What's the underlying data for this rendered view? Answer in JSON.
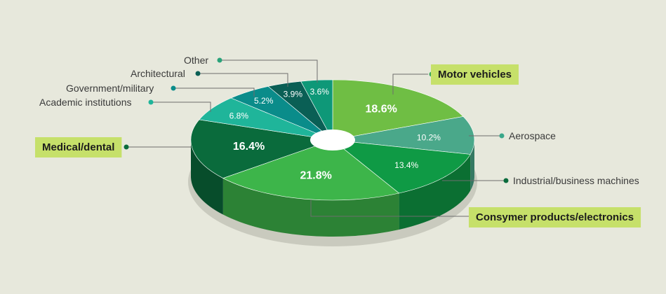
{
  "chart_data": {
    "type": "pie",
    "style": "3d-donut",
    "title": "",
    "categories": [
      "Motor vehicles",
      "Aerospace",
      "Industrial/business machines",
      "Consymer products/electronics",
      "Medical/dental",
      "Academic institutions",
      "Government/military",
      "Architectural",
      "Other"
    ],
    "values": [
      18.6,
      10.2,
      13.4,
      21.8,
      16.4,
      6.8,
      5.2,
      3.9,
      3.6
    ],
    "value_labels": [
      "18.6%",
      "10.2%",
      "13.4%",
      "21.8%",
      "16.4%",
      "6.8%",
      "5.2%",
      "3.9%",
      "3.6%"
    ],
    "highlighted": [
      "Motor vehicles",
      "Consymer products/electronics",
      "Medical/dental"
    ],
    "colors": [
      "#6fbe44",
      "#4aa88a",
      "#0f9a45",
      "#3db54a",
      "#0a6b3c",
      "#1fb59a",
      "#0a8c8a",
      "#0a5f55",
      "#0e9878"
    ],
    "highlight_box_color": "#c6e06a",
    "background": "#e7e8dc"
  }
}
